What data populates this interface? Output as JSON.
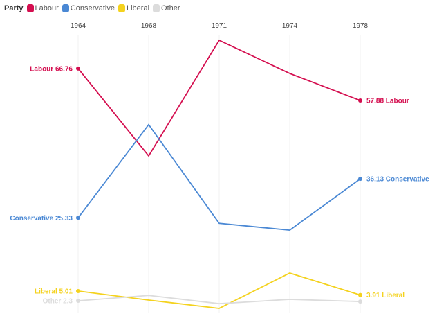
{
  "legend": {
    "title": "Party",
    "items": [
      {
        "label": "Labour",
        "color": "#d40e4f"
      },
      {
        "label": "Conservative",
        "color": "#4a88d4"
      },
      {
        "label": "Liberal",
        "color": "#f4d21e"
      },
      {
        "label": "Other",
        "color": "#dcdcdc"
      }
    ]
  },
  "chart_data": {
    "type": "line",
    "x": [
      "1964",
      "1968",
      "1971",
      "1974",
      "1978"
    ],
    "grid": "vertical",
    "ylim": [
      0,
      80
    ],
    "legend_position": "top-left",
    "series": [
      {
        "name": "Labour",
        "color": "#d40e4f",
        "values": [
          66.76,
          42.5,
          74.6,
          65.4,
          57.88
        ],
        "start_label": "Labour 66.76",
        "end_label": "57.88 Labour"
      },
      {
        "name": "Conservative",
        "color": "#4a88d4",
        "values": [
          25.33,
          51.2,
          23.8,
          21.9,
          36.13
        ],
        "start_label": "Conservative 25.33",
        "end_label": "36.13 Conservative"
      },
      {
        "name": "Liberal",
        "color": "#f4d21e",
        "values": [
          5.01,
          2.5,
          0.2,
          10.0,
          3.91
        ],
        "start_label": "Liberal 5.01",
        "end_label": "3.91 Liberal"
      },
      {
        "name": "Other",
        "color": "#dcdcdc",
        "values": [
          2.3,
          3.8,
          1.5,
          2.7,
          2.1
        ],
        "start_label": "Other 2.3",
        "end_label": ""
      }
    ]
  }
}
